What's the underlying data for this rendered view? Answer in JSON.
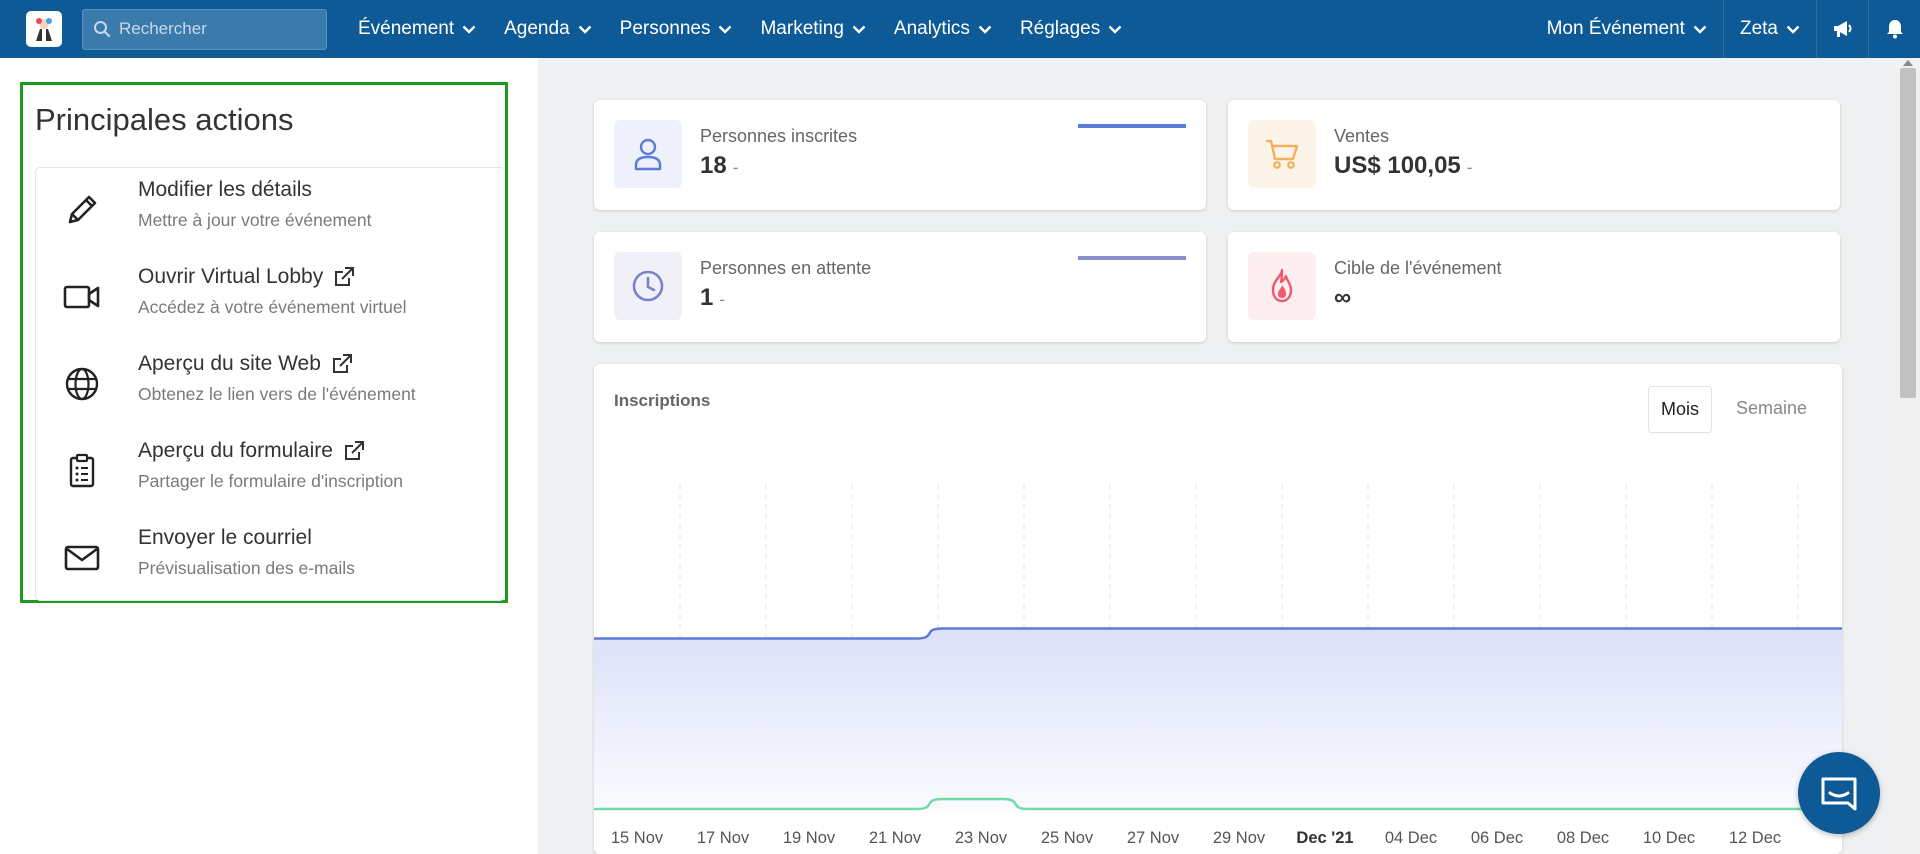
{
  "topnav": {
    "search_placeholder": "Rechercher",
    "menu": [
      {
        "label": "Événement"
      },
      {
        "label": "Agenda"
      },
      {
        "label": "Personnes"
      },
      {
        "label": "Marketing"
      },
      {
        "label": "Analytics"
      },
      {
        "label": "Réglages"
      }
    ],
    "event_selector": "Mon Événement",
    "user": "Zeta",
    "icons": [
      "megaphone-icon",
      "bell-icon"
    ]
  },
  "actions": {
    "title": "Principales actions",
    "items": [
      {
        "title": "Modifier les détails",
        "subtitle": "Mettre à jour votre événement",
        "icon": "pencil-icon",
        "external": false
      },
      {
        "title": "Ouvrir Virtual Lobby",
        "subtitle": "Accédez à votre événement virtuel",
        "icon": "video-camera-icon",
        "external": true
      },
      {
        "title": "Aperçu du site Web",
        "subtitle": "Obtenez le lien vers de l'événement",
        "icon": "globe-icon",
        "external": true
      },
      {
        "title": "Aperçu du formulaire",
        "subtitle": "Partager le formulaire d'inscription",
        "icon": "clipboard-icon",
        "external": true
      },
      {
        "title": "Envoyer le courriel",
        "subtitle": "Prévisualisation des e-mails",
        "icon": "envelope-icon",
        "external": false
      }
    ]
  },
  "stats": [
    {
      "label": "Personnes inscrites",
      "value": "18",
      "trend": "-",
      "icon": "person-icon",
      "color": "#5b7bd6",
      "bg": "#eef1fb",
      "spark": "#5b7bd6"
    },
    {
      "label": "Ventes",
      "value": "US$ 100,05",
      "trend": "-",
      "icon": "cart-icon",
      "color": "#f0b15a",
      "bg": "#fdf4e9"
    },
    {
      "label": "Personnes en attente",
      "value": "1",
      "trend": "-",
      "icon": "clock-icon",
      "color": "#7b83c9",
      "bg": "#eff0f8",
      "spark": "#8c8fcb"
    },
    {
      "label": "Cible de l'événement",
      "value": "∞",
      "trend": "",
      "icon": "fire-icon",
      "color": "#ef5a6f",
      "bg": "#fdeef0"
    }
  ],
  "chart_data": {
    "type": "area",
    "title": "Inscriptions",
    "toggles": [
      {
        "label": "Mois",
        "active": true
      },
      {
        "label": "Semaine",
        "active": false
      }
    ],
    "x": [
      "15 Nov",
      "17 Nov",
      "19 Nov",
      "21 Nov",
      "23 Nov",
      "25 Nov",
      "27 Nov",
      "29 Nov",
      "Dec '21",
      "04 Dec",
      "06 Dec",
      "08 Dec",
      "10 Dec",
      "12 Dec"
    ],
    "x_bold": [
      "Dec '21"
    ],
    "series": [
      {
        "color": "#5b7bd6",
        "fill": true,
        "values": [
          17,
          17,
          17,
          17,
          18,
          18,
          18,
          18,
          18,
          18,
          18,
          18,
          18,
          18
        ]
      },
      {
        "color": "#6fdca3",
        "fill": false,
        "values": [
          0,
          0,
          0,
          0,
          1,
          0,
          0,
          0,
          0,
          0,
          0,
          0,
          0,
          0
        ]
      }
    ],
    "ylim": [
      0,
      30
    ],
    "grid": "vertical dashed"
  }
}
